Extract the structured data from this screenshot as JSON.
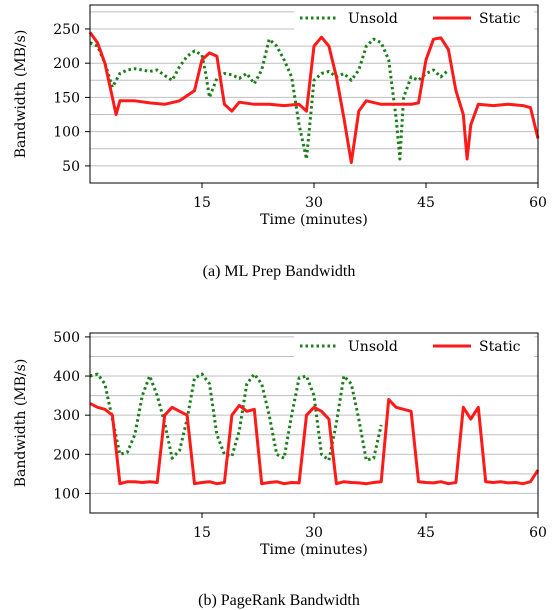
{
  "chart_data": [
    {
      "type": "line",
      "caption": "(a) ML Prep Bandwidth",
      "xlabel": "Time (minutes)",
      "ylabel": "Bandwidth (MB/s)",
      "xlim": [
        0,
        60
      ],
      "ylim": [
        25,
        285
      ],
      "xticks": [
        15,
        30,
        45,
        60
      ],
      "yticks": [
        50,
        100,
        150,
        200,
        250
      ],
      "grid": "horizontal",
      "legend": "top-right",
      "series": [
        {
          "name": "Unsold",
          "style": "dotted",
          "color": "#1a7f1a",
          "points": [
            [
              0,
              230
            ],
            [
              1,
              225
            ],
            [
              2,
              200
            ],
            [
              3,
              165
            ],
            [
              4,
              185
            ],
            [
              5,
              190
            ],
            [
              6,
              192
            ],
            [
              7,
              190
            ],
            [
              8,
              188
            ],
            [
              9,
              190
            ],
            [
              10,
              182
            ],
            [
              11,
              175
            ],
            [
              12,
              195
            ],
            [
              13,
              210
            ],
            [
              14,
              218
            ],
            [
              15,
              212
            ],
            [
              15.5,
              185
            ],
            [
              16,
              150
            ],
            [
              17,
              178
            ],
            [
              18,
              185
            ],
            [
              19,
              183
            ],
            [
              20,
              178
            ],
            [
              21,
              185
            ],
            [
              22,
              170
            ],
            [
              23,
              190
            ],
            [
              24,
              235
            ],
            [
              25,
              225
            ],
            [
              26,
              205
            ],
            [
              27,
              180
            ],
            [
              28,
              110
            ],
            [
              29,
              60
            ],
            [
              30,
              175
            ],
            [
              31,
              185
            ],
            [
              32,
              188
            ],
            [
              33,
              180
            ],
            [
              34,
              185
            ],
            [
              35,
              175
            ],
            [
              36,
              190
            ],
            [
              37,
              225
            ],
            [
              38,
              235
            ],
            [
              39,
              230
            ],
            [
              40,
              205
            ],
            [
              41,
              120
            ],
            [
              41.5,
              60
            ],
            [
              42,
              150
            ],
            [
              43,
              180
            ],
            [
              44,
              175
            ],
            [
              45,
              185
            ],
            [
              46,
              190
            ],
            [
              47,
              180
            ],
            [
              48,
              190
            ]
          ]
        },
        {
          "name": "Static",
          "style": "solid",
          "color": "#ff1a1a",
          "points": [
            [
              0,
              245
            ],
            [
              1,
              230
            ],
            [
              2,
              200
            ],
            [
              3,
              150
            ],
            [
              3.5,
              125
            ],
            [
              4,
              145
            ],
            [
              6,
              145
            ],
            [
              8,
              142
            ],
            [
              10,
              140
            ],
            [
              12,
              145
            ],
            [
              14,
              160
            ],
            [
              15,
              205
            ],
            [
              16,
              215
            ],
            [
              17,
              210
            ],
            [
              18,
              140
            ],
            [
              19,
              130
            ],
            [
              20,
              143
            ],
            [
              22,
              140
            ],
            [
              24,
              140
            ],
            [
              26,
              138
            ],
            [
              28,
              140
            ],
            [
              29,
              130
            ],
            [
              30,
              225
            ],
            [
              31,
              238
            ],
            [
              32,
              225
            ],
            [
              33,
              180
            ],
            [
              34,
              120
            ],
            [
              35,
              55
            ],
            [
              36,
              130
            ],
            [
              37,
              145
            ],
            [
              39,
              140
            ],
            [
              41,
              140
            ],
            [
              43,
              140
            ],
            [
              44,
              142
            ],
            [
              45,
              205
            ],
            [
              46,
              235
            ],
            [
              47,
              237
            ],
            [
              48,
              220
            ],
            [
              49,
              160
            ],
            [
              50,
              125
            ],
            [
              50.5,
              60
            ],
            [
              51,
              110
            ],
            [
              52,
              140
            ],
            [
              54,
              138
            ],
            [
              56,
              140
            ],
            [
              58,
              138
            ],
            [
              59,
              135
            ],
            [
              60,
              90
            ]
          ]
        }
      ]
    },
    {
      "type": "line",
      "caption": "(b) PageRank Bandwidth",
      "xlabel": "Time (minutes)",
      "ylabel": "Bandwidth (MB/s)",
      "xlim": [
        0,
        60
      ],
      "ylim": [
        50,
        510
      ],
      "xticks": [
        15,
        30,
        45,
        60
      ],
      "yticks": [
        100,
        200,
        300,
        400,
        500
      ],
      "grid": "horizontal",
      "legend": "top-right",
      "series": [
        {
          "name": "Unsold",
          "style": "dotted",
          "color": "#1a7f1a",
          "points": [
            [
              0,
              400
            ],
            [
              1,
              405
            ],
            [
              2,
              380
            ],
            [
              3,
              290
            ],
            [
              4,
              200
            ],
            [
              5,
              205
            ],
            [
              6,
              250
            ],
            [
              7,
              350
            ],
            [
              8,
              400
            ],
            [
              9,
              350
            ],
            [
              10,
              280
            ],
            [
              11,
              190
            ],
            [
              12,
              210
            ],
            [
              13,
              290
            ],
            [
              14,
              395
            ],
            [
              15,
              405
            ],
            [
              16,
              380
            ],
            [
              17,
              250
            ],
            [
              18,
              200
            ],
            [
              19,
              195
            ],
            [
              20,
              260
            ],
            [
              21,
              380
            ],
            [
              22,
              405
            ],
            [
              23,
              380
            ],
            [
              24,
              300
            ],
            [
              25,
              200
            ],
            [
              26,
              190
            ],
            [
              27,
              300
            ],
            [
              28,
              395
            ],
            [
              29,
              400
            ],
            [
              30,
              350
            ],
            [
              31,
              200
            ],
            [
              32,
              185
            ],
            [
              33,
              280
            ],
            [
              34,
              400
            ],
            [
              35,
              380
            ],
            [
              36,
              290
            ],
            [
              37,
              185
            ],
            [
              38,
              190
            ],
            [
              39,
              275
            ]
          ]
        },
        {
          "name": "Static",
          "style": "solid",
          "color": "#ff1a1a",
          "points": [
            [
              0,
              330
            ],
            [
              1,
              320
            ],
            [
              2,
              315
            ],
            [
              3,
              300
            ],
            [
              4,
              125
            ],
            [
              5,
              130
            ],
            [
              6,
              130
            ],
            [
              7,
              128
            ],
            [
              8,
              130
            ],
            [
              9,
              128
            ],
            [
              10,
              300
            ],
            [
              11,
              320
            ],
            [
              12,
              310
            ],
            [
              13,
              300
            ],
            [
              14,
              125
            ],
            [
              15,
              128
            ],
            [
              16,
              130
            ],
            [
              17,
              125
            ],
            [
              18,
              128
            ],
            [
              19,
              300
            ],
            [
              20,
              325
            ],
            [
              21,
              310
            ],
            [
              22,
              315
            ],
            [
              23,
              125
            ],
            [
              24,
              128
            ],
            [
              25,
              130
            ],
            [
              26,
              125
            ],
            [
              27,
              128
            ],
            [
              28,
              127
            ],
            [
              29,
              300
            ],
            [
              30,
              320
            ],
            [
              31,
              310
            ],
            [
              32,
              290
            ],
            [
              33,
              125
            ],
            [
              34,
              130
            ],
            [
              35,
              128
            ],
            [
              36,
              127
            ],
            [
              37,
              125
            ],
            [
              38,
              128
            ],
            [
              39,
              130
            ],
            [
              40,
              340
            ],
            [
              41,
              320
            ],
            [
              42,
              315
            ],
            [
              43,
              310
            ],
            [
              44,
              130
            ],
            [
              45,
              128
            ],
            [
              46,
              127
            ],
            [
              47,
              130
            ],
            [
              48,
              125
            ],
            [
              49,
              128
            ],
            [
              50,
              320
            ],
            [
              51,
              290
            ],
            [
              52,
              320
            ],
            [
              53,
              130
            ],
            [
              54,
              128
            ],
            [
              55,
              130
            ],
            [
              56,
              127
            ],
            [
              57,
              128
            ],
            [
              58,
              125
            ],
            [
              59,
              130
            ],
            [
              60,
              160
            ]
          ]
        }
      ]
    }
  ]
}
